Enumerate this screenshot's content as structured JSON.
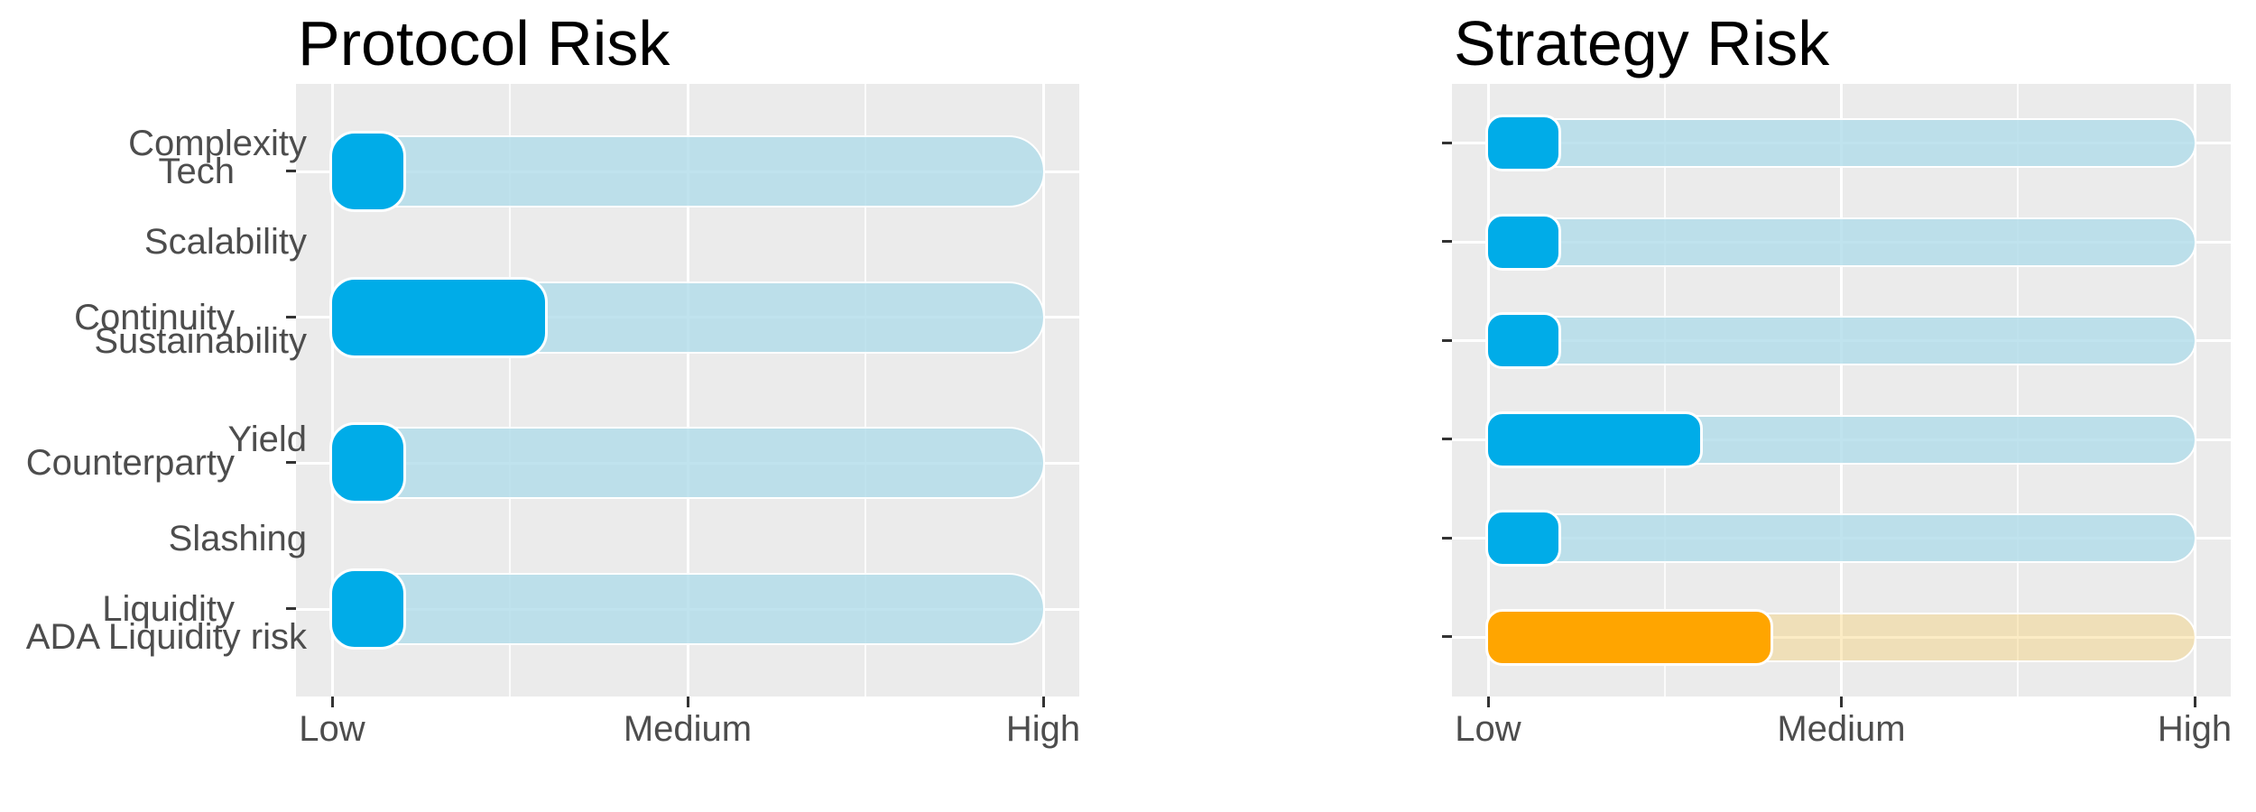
{
  "chart_data": [
    {
      "type": "bar",
      "orientation": "horizontal",
      "title": "Protocol Risk",
      "categories": [
        "Tech",
        "Continuity",
        "Counterparty",
        "Liquidity"
      ],
      "values": [
        0.1,
        0.3,
        0.1,
        0.1
      ],
      "series_note": "filled value bar over full-length light track, one row per category",
      "value_scale": {
        "min": 0,
        "max": 1,
        "tick_values": [
          0,
          0.5,
          1
        ],
        "tick_labels": [
          "Low",
          "Medium",
          "High"
        ],
        "minor_tick_values": [
          0.25,
          0.75
        ]
      },
      "bar_colors": [
        "#00ACE8",
        "#00ACE8",
        "#00ACE8",
        "#00ACE8"
      ],
      "track_colors": [
        "rgba(176,220,234,0.8)",
        "rgba(176,220,234,0.8)",
        "rgba(176,220,234,0.8)",
        "rgba(176,220,234,0.8)"
      ],
      "legend": "none",
      "grid": "on"
    },
    {
      "type": "bar",
      "orientation": "horizontal",
      "title": "Strategy Risk",
      "categories": [
        "Complexity",
        "Scalability",
        "Sustainability",
        "Yield",
        "Slashing",
        "ADA Liquidity risk"
      ],
      "values": [
        0.1,
        0.1,
        0.1,
        0.3,
        0.1,
        0.4
      ],
      "series_note": "filled value bar over full-length light track, one row per category; ADA Liquidity risk row is orange",
      "value_scale": {
        "min": 0,
        "max": 1,
        "tick_values": [
          0,
          0.5,
          1
        ],
        "tick_labels": [
          "Low",
          "Medium",
          "High"
        ],
        "minor_tick_values": [
          0.25,
          0.75
        ]
      },
      "bar_colors": [
        "#00ACE8",
        "#00ACE8",
        "#00ACE8",
        "#00ACE8",
        "#00ACE8",
        "#FFA500"
      ],
      "track_colors": [
        "rgba(176,220,234,0.8)",
        "rgba(176,220,234,0.8)",
        "rgba(176,220,234,0.8)",
        "rgba(176,220,234,0.8)",
        "rgba(176,220,234,0.8)",
        "rgba(246,201,89,0.35)"
      ],
      "legend": "none",
      "grid": "on"
    }
  ],
  "style": {
    "panel_bg": "#EBEBEB",
    "grid_major_color": "#FFFFFF",
    "grid_minor_color": "rgba(255,255,255,0.8)",
    "axis_text_color": "#4D4D4D",
    "title_color": "#000000",
    "tick_mark_color": "#333333",
    "bar_outline_color": "#FFFFFF"
  }
}
